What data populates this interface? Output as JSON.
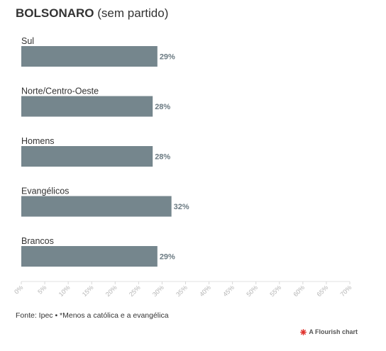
{
  "title_bold": "BOLSONARO",
  "title_rest": "(sem partido)",
  "footer": "Fonte: Ipec • *Menos a católica e a evangélica",
  "credit": "A Flourish chart",
  "colors": {
    "bar": "#75868d",
    "value_label": "#6b7a82",
    "flourish": "#e0322d"
  },
  "chart_data": {
    "type": "bar",
    "orientation": "horizontal",
    "categories": [
      "Sul",
      "Norte/Centro-Oeste",
      "Homens",
      "Evangélicos",
      "Brancos"
    ],
    "values": [
      29,
      28,
      28,
      32,
      29
    ],
    "value_labels": [
      "29%",
      "28%",
      "28%",
      "32%",
      "29%"
    ],
    "xlim": [
      0,
      70
    ],
    "x_ticks": [
      0,
      5,
      10,
      15,
      20,
      25,
      30,
      35,
      40,
      45,
      50,
      55,
      60,
      65,
      70
    ],
    "x_tick_labels": [
      "0%",
      "5%",
      "10%",
      "15%",
      "20%",
      "25%",
      "30%",
      "35%",
      "40%",
      "45%",
      "50%",
      "55%",
      "60%",
      "65%",
      "70%"
    ],
    "grid": false,
    "legend": "none"
  }
}
